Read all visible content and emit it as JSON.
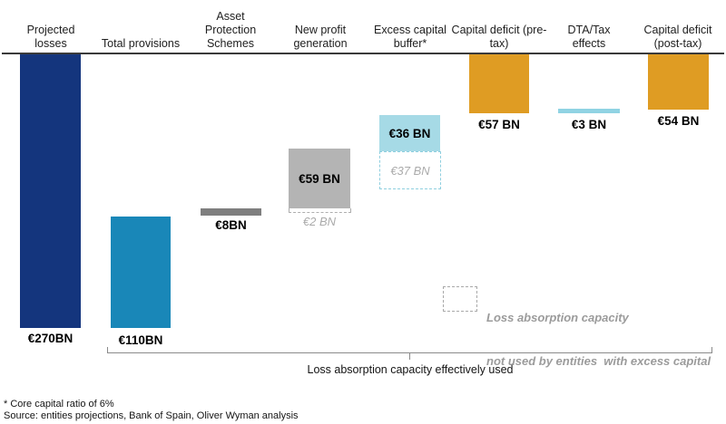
{
  "chart_data": {
    "type": "bar",
    "subtype": "waterfall",
    "orientation": "bars-hang-from-top-baseline",
    "unit": "EUR BN",
    "title": "",
    "categories": [
      "Projected losses",
      "Total provisions",
      "Asset Protection Schemes",
      "New profit generation",
      "Excess capital buffer*",
      "Capital deficit (pre-tax)",
      "DTA/Tax effects",
      "Capital deficit (post-tax)"
    ],
    "values": [
      270,
      110,
      8,
      59,
      36,
      57,
      3,
      54
    ],
    "unused_capacity": {
      "New profit generation": 2,
      "Excess capital buffer*": 37
    },
    "columns": [
      {
        "header": "Projected\nlosses",
        "header_flat": "Projected losses",
        "value": 270,
        "value_label": "€270BN",
        "color": "#14357D",
        "label_position": "below"
      },
      {
        "header": "Total provisions",
        "header_flat": "Total provisions",
        "value": 110,
        "value_label": "€110BN",
        "color": "#1987B8",
        "label_position": "below"
      },
      {
        "header": "Asset\nProtection\nSchemes",
        "header_flat": "Asset Protection Schemes",
        "value": 8,
        "value_label": "€8BN",
        "color": "#7F7F7F",
        "label_position": "below"
      },
      {
        "header": "New profit\ngeneration",
        "header_flat": "New profit generation",
        "value": 59,
        "value_label": "€59 BN",
        "color": "#B4B4B4",
        "label_position": "inside",
        "unused_value": 2,
        "unused_label": "€2 BN"
      },
      {
        "header": "Excess capital\nbuffer*",
        "header_flat": "Excess capital buffer*",
        "value": 36,
        "value_label": "€36 BN",
        "color": "#A6DAE6",
        "label_position": "inside",
        "unused_value": 37,
        "unused_label": "€37 BN"
      },
      {
        "header": "Capital deficit\n(pre-tax)",
        "header_flat": "Capital deficit (pre-tax)",
        "value": 57,
        "value_label": "€57 BN",
        "color": "#DF9C23",
        "label_position": "below"
      },
      {
        "header": "DTA/Tax\neffects",
        "header_flat": "DTA/Tax effects",
        "value": 3,
        "value_label": "€3 BN",
        "color": "#90D3E3",
        "label_position": "below"
      },
      {
        "header": "Capital deficit\n(post-tax)",
        "header_flat": "Capital deficit (post-tax)",
        "value": 54,
        "value_label": "€54 BN",
        "color": "#DF9C23",
        "label_position": "below"
      }
    ],
    "legend": {
      "line1": "Loss absorption capacity",
      "line2": "not used by entities  with excess capital",
      "swatch": "dashed-gray-box",
      "position": "center-right"
    },
    "bracket_label": "Loss absorption capacity effectively used",
    "footnotes": [
      "* Core capital ratio of 6%",
      "Source: entities projections, Bank of Spain, Oliver Wyman analysis"
    ],
    "colors": {
      "projected_losses": "#14357D",
      "total_provisions": "#1987B8",
      "asset_protection_schemes": "#7F7F7F",
      "new_profit_generation": "#B4B4B4",
      "excess_capital_buffer": "#A6DAE6",
      "dta_tax_effects": "#90D3E3",
      "capital_deficit": "#DF9C23",
      "baseline_axis": "#3A3A3A",
      "unused_capacity_text": "#ABABAB"
    },
    "grid": false
  }
}
